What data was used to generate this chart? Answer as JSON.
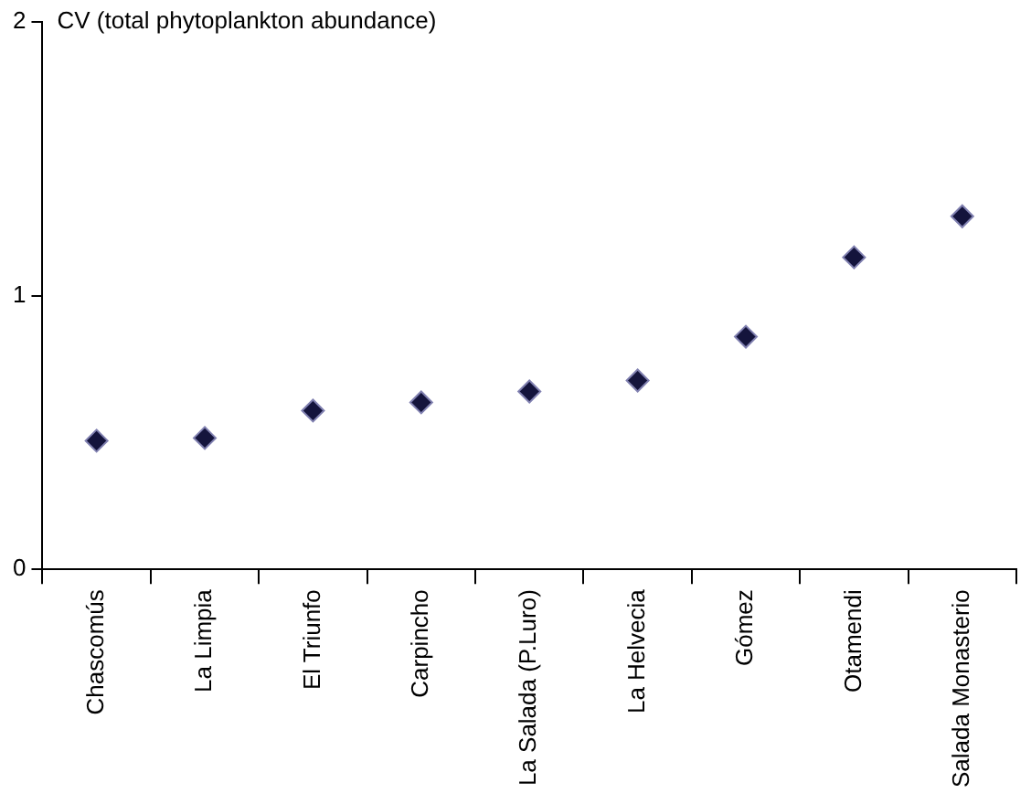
{
  "chart_data": {
    "type": "scatter",
    "ylabel": "CV (total phytoplankton abundance)",
    "categories": [
      "Chascomús",
      "La Limpia",
      "El Triunfo",
      "Carpincho",
      "La Salada (P.Luro)",
      "La Helvecia",
      "Gómez",
      "Otamendi",
      "Salada Monasterio"
    ],
    "series": [
      {
        "color": "#14143c",
        "values": [
          0.47,
          0.48,
          0.58,
          0.61,
          0.65,
          0.69,
          0.85,
          1.14,
          1.29
        ]
      }
    ],
    "ylim": [
      0,
      2
    ],
    "yticks": [
      0,
      1,
      2
    ],
    "grid": false,
    "legend": false,
    "marker": "diamond"
  }
}
